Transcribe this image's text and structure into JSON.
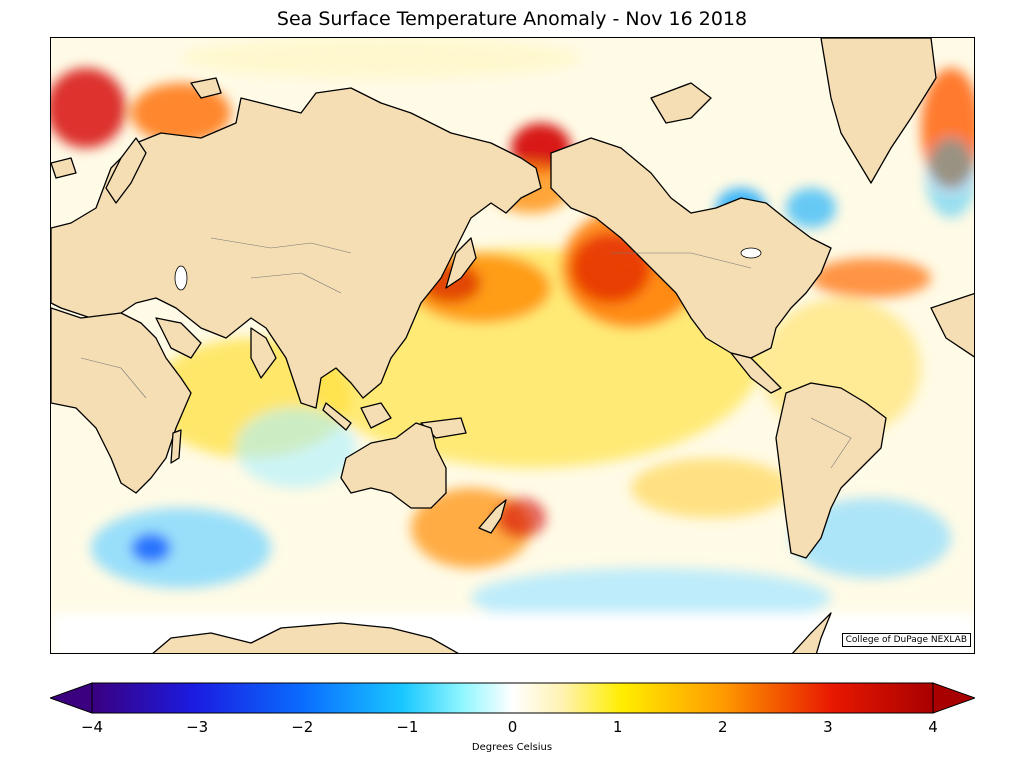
{
  "title": "Sea Surface Temperature Anomaly - Nov 16 2018",
  "credit": "College of DuPage NEXLAB",
  "colorbar": {
    "label": "Degrees Celsius",
    "ticks": [
      "−4",
      "−3",
      "−2",
      "−1",
      "0",
      "1",
      "2",
      "3",
      "4"
    ],
    "range": [
      -4,
      4
    ]
  },
  "colors": {
    "land": "#f5deb3",
    "coastline": "#000000",
    "warm_strong": "#d40000",
    "warm": "#ff9900",
    "warm_mild": "#ffee00",
    "cool": "#00b4ff",
    "cool_strong": "#0050ff",
    "neutral": "#ffffff"
  }
}
